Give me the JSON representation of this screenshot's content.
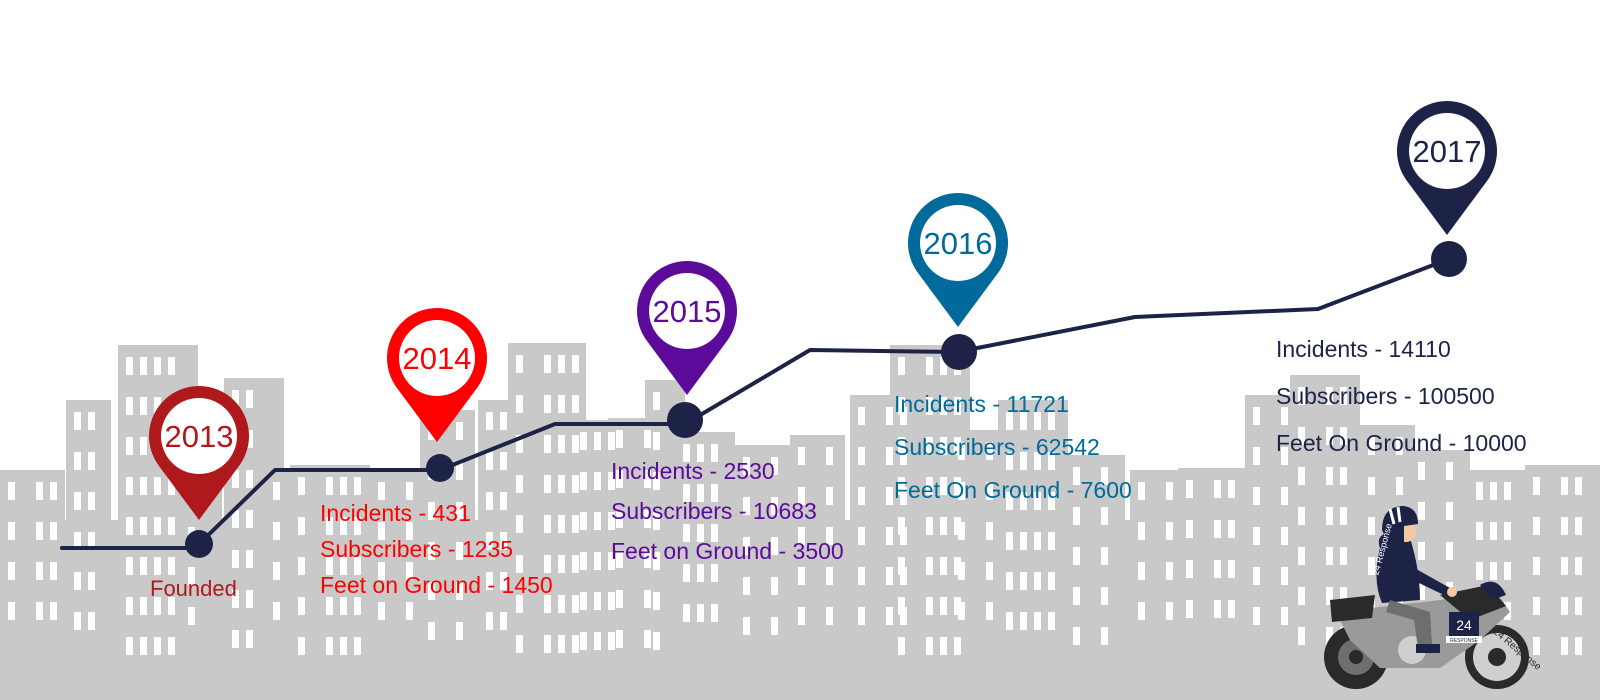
{
  "colors": {
    "line": "#1c2347",
    "skyline": "#c9c9c9",
    "window": "#ffffff",
    "y2013": "#b0191b",
    "y2014": "#ff0000",
    "y2015": "#5c0a9a",
    "y2016": "#006a9a",
    "y2017": "#1c2347"
  },
  "milestones": [
    {
      "year": "2013",
      "color_key": "y2013",
      "note": "Founded"
    },
    {
      "year": "2014",
      "color_key": "y2014",
      "stats": [
        "Incidents - 431",
        "Subscribers - 1235",
        "Feet on Ground - 1450"
      ]
    },
    {
      "year": "2015",
      "color_key": "y2015",
      "stats": [
        "Incidents - 2530",
        "Subscribers - 10683",
        "Feet on Ground - 3500"
      ]
    },
    {
      "year": "2016",
      "color_key": "y2016",
      "stats": [
        "Incidents - 11721",
        "Subscribers - 62542",
        "Feet On Ground - 7600"
      ]
    },
    {
      "year": "2017",
      "color_key": "y2017",
      "stats": [
        "Incidents - 14110",
        "Subscribers - 100500",
        "Feet On Ground - 10000"
      ]
    }
  ],
  "rider": {
    "icon": "motorcycle-rider-icon",
    "badge_text": "24",
    "badge_sub": "RESPONSE",
    "shirt_text": "24 Response",
    "wheel_text": "24 Response"
  }
}
